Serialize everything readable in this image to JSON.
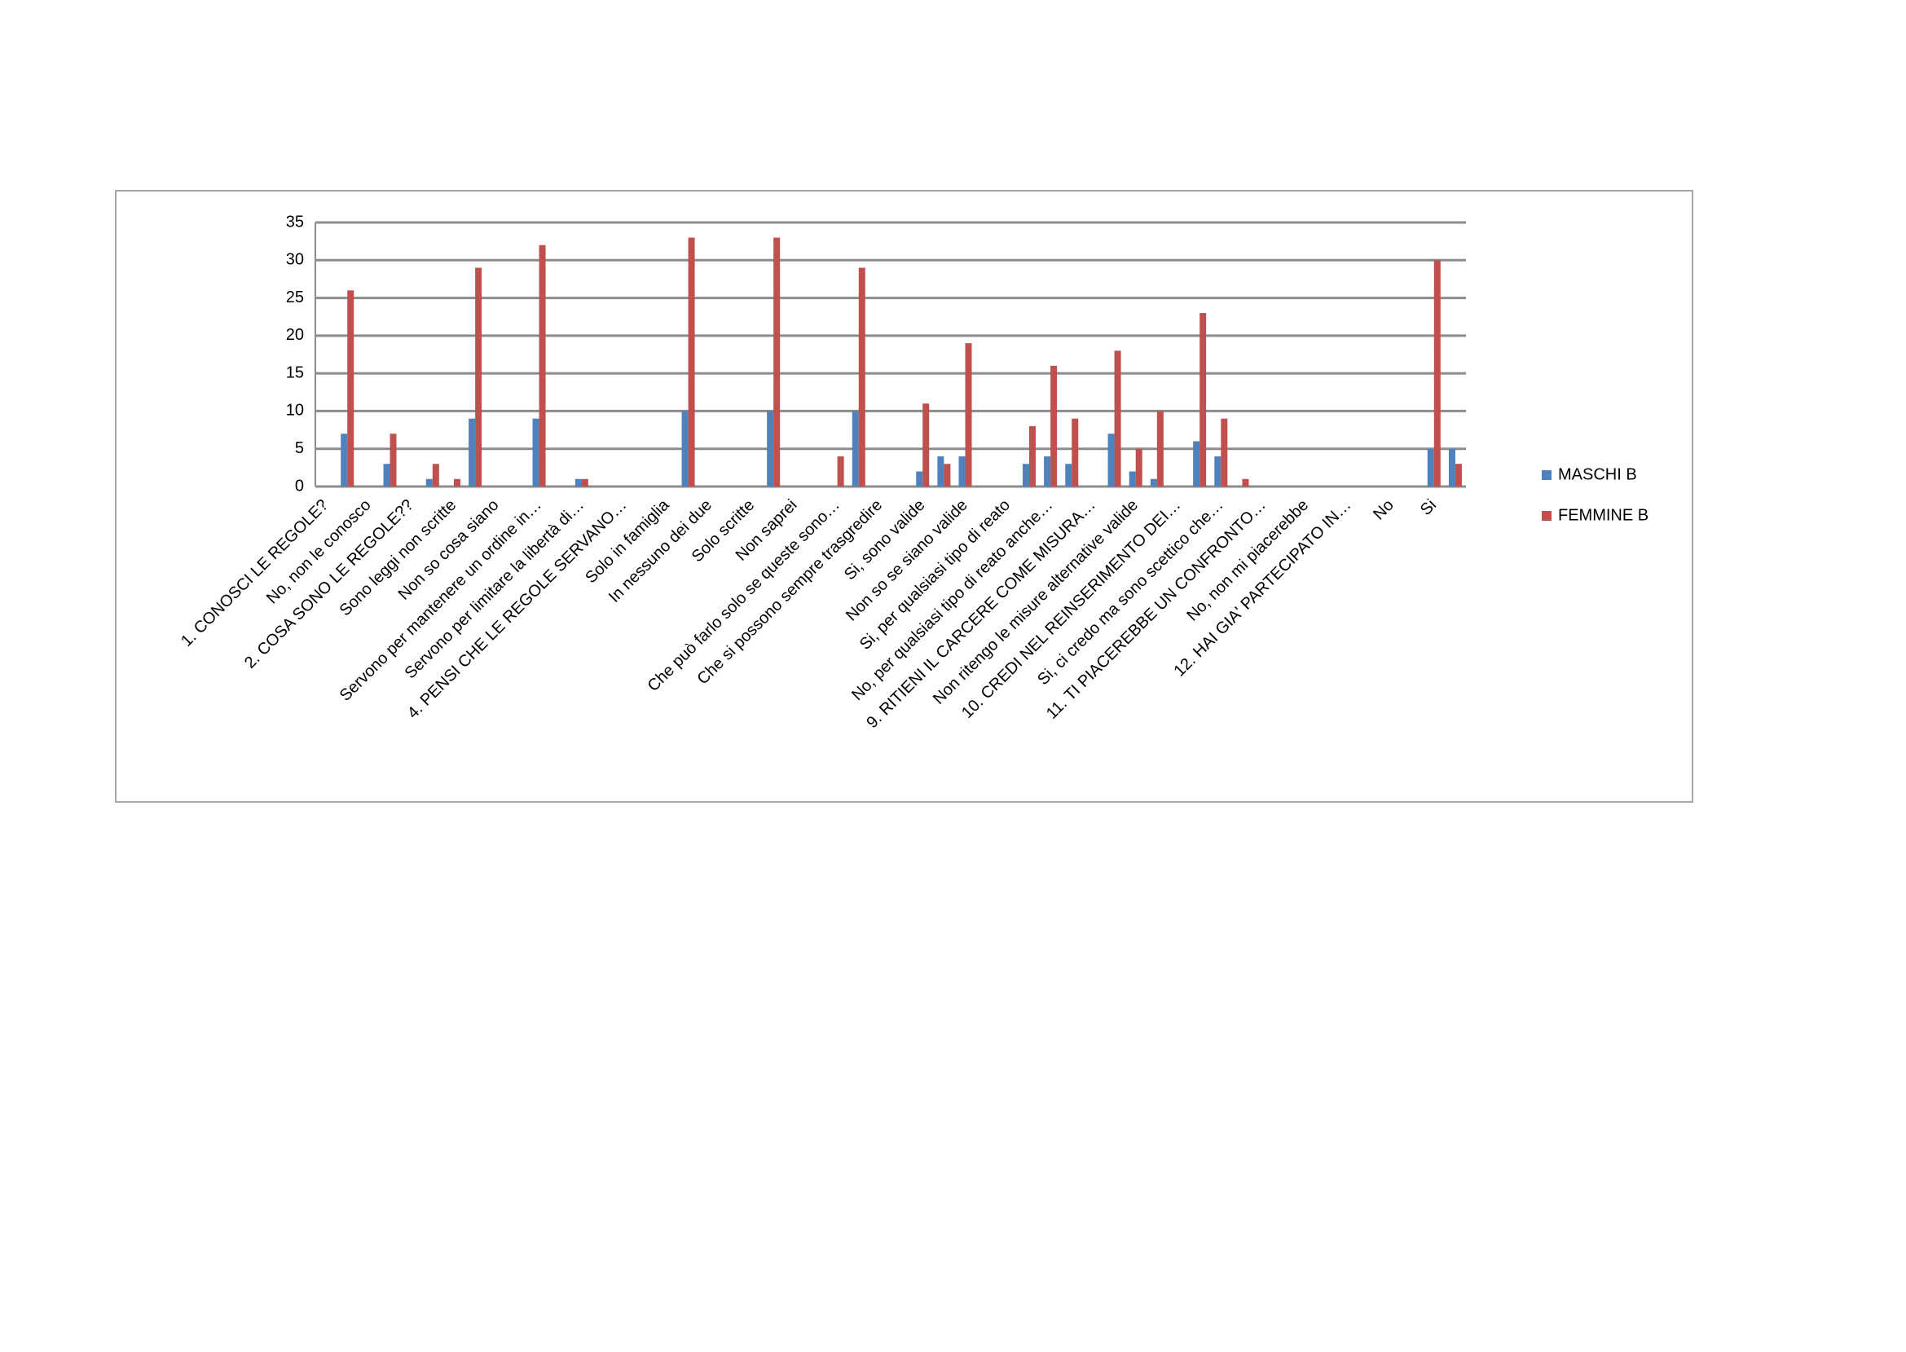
{
  "chart_data": {
    "type": "bar",
    "categories": [
      "1. CONOSCI LE REGOLE?",
      null,
      "No, non le conosco",
      null,
      "2. COSA SONO LE REGOLE??",
      null,
      "Sono leggi non scritte",
      null,
      "Non so cosa siano",
      null,
      "Servono per mantenere un ordine in…",
      null,
      "Servono per limitare la libertà di…",
      null,
      "4. PENSI CHE LE REGOLE SERVANO…",
      null,
      "Solo in famiglia",
      null,
      "In nessuno dei due",
      null,
      "Solo scritte",
      null,
      "Non saprei",
      null,
      "Che può farlo solo se queste sono…",
      null,
      "Che si possono sempre trasgredire",
      null,
      "Si, sono valide",
      null,
      "Non so se siano valide",
      null,
      "Si, per qualsiasi tipo di reato",
      null,
      "No, per qualsiasi tipo di reato anche…",
      null,
      "9. RITIENI IL CARCERE COME MISURA…",
      null,
      "Non ritengo le misure alternative valide",
      null,
      "10. CREDI NEL REINSERIMENTO DEI…",
      null,
      "Si, ci credo ma sono scettico che…",
      null,
      "11. TI PIACEREBBE UN CONFRONTO…",
      null,
      "No, non mi piacerebbe",
      null,
      "12. HAI GIA' PARTECIPATO IN…",
      null,
      "No",
      null,
      "Si",
      null
    ],
    "series": [
      {
        "name": "MASCHI B",
        "color": "#4f81bd",
        "values": [
          0,
          7,
          0,
          3,
          0,
          1,
          0,
          9,
          0,
          0,
          9,
          0,
          1,
          0,
          0,
          0,
          0,
          10,
          0,
          0,
          0,
          10,
          0,
          0,
          0,
          10,
          0,
          0,
          2,
          4,
          4,
          0,
          0,
          3,
          4,
          3,
          0,
          7,
          2,
          1,
          0,
          6,
          4,
          0,
          0,
          0,
          0,
          0,
          0,
          0,
          0,
          0,
          5,
          5
        ]
      },
      {
        "name": "FEMMINE B",
        "color": "#c0504d",
        "values": [
          0,
          26,
          0,
          7,
          0,
          3,
          1,
          29,
          0,
          0,
          32,
          0,
          1,
          0,
          0,
          0,
          0,
          33,
          0,
          0,
          0,
          33,
          0,
          0,
          4,
          29,
          0,
          0,
          11,
          3,
          19,
          0,
          0,
          8,
          16,
          9,
          0,
          18,
          5,
          10,
          0,
          23,
          9,
          1,
          0,
          0,
          0,
          0,
          0,
          0,
          0,
          0,
          30,
          3
        ]
      }
    ],
    "ylim": [
      0,
      35
    ],
    "yticks": [
      0,
      5,
      10,
      15,
      20,
      25,
      30,
      35
    ],
    "grid": true,
    "legend": "right"
  }
}
